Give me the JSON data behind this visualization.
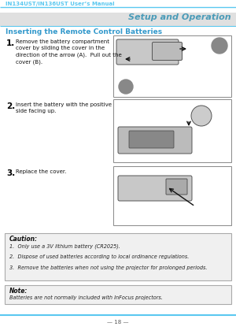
{
  "page_title": "IN134UST/IN136UST User’s Manual",
  "section_title": "Setup and Operation",
  "heading": "Inserting the Remote Control Batteries",
  "step1_num": "1.",
  "step1_text": "Remove the battery compartment\ncover by sliding the cover in the\ndirection of the arrow (A).  Pull out the\ncover (B).",
  "step2_num": "2.",
  "step2_text": "Insert the battery with the positive\nside facing up.",
  "step3_num": "3.",
  "step3_text": "Replace the cover.",
  "caution_title": "Caution:",
  "caution_items": [
    "1.  Only use a 3V lithium battery (CR2025).",
    "2.  Dispose of used batteries according to local ordinance regulations.",
    "3.  Remove the batteries when not using the projector for prolonged periods."
  ],
  "note_title": "Note:",
  "note_text": "Batteries are not normally included with InFocus projectors.",
  "page_number": "— 18 —",
  "header_color": "#5BC8F0",
  "section_bg_color": "#E0E0E0",
  "section_text_color": "#4A9BB8",
  "heading_color": "#3399CC",
  "bg_color": "#FFFFFF",
  "caution_bg": "#F0F0F0",
  "note_bg": "#F0F0F0"
}
